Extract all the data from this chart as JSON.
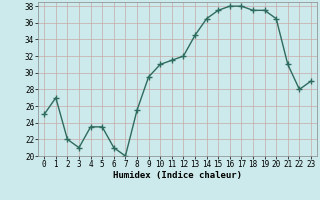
{
  "x": [
    0,
    1,
    2,
    3,
    4,
    5,
    6,
    7,
    8,
    9,
    10,
    11,
    12,
    13,
    14,
    15,
    16,
    17,
    18,
    19,
    20,
    21,
    22,
    23
  ],
  "y": [
    25,
    27,
    22,
    21,
    23.5,
    23.5,
    21,
    20,
    25.5,
    29.5,
    31,
    31.5,
    32,
    34.5,
    36.5,
    37.5,
    38,
    38,
    37.5,
    37.5,
    36.5,
    31,
    28,
    29
  ],
  "line_color": "#2e6b5e",
  "marker": "+",
  "marker_size": 4,
  "linewidth": 1.0,
  "bg_color": "#cceaeb",
  "grid_color": "#b0d0d0",
  "xlabel": "Humidex (Indice chaleur)",
  "ylim": [
    20,
    38.5
  ],
  "xlim": [
    -0.5,
    23.5
  ],
  "yticks": [
    20,
    22,
    24,
    26,
    28,
    30,
    32,
    34,
    36,
    38
  ],
  "xticks": [
    0,
    1,
    2,
    3,
    4,
    5,
    6,
    7,
    8,
    9,
    10,
    11,
    12,
    13,
    14,
    15,
    16,
    17,
    18,
    19,
    20,
    21,
    22,
    23
  ],
  "tick_fontsize": 5.5,
  "xlabel_fontsize": 6.5
}
